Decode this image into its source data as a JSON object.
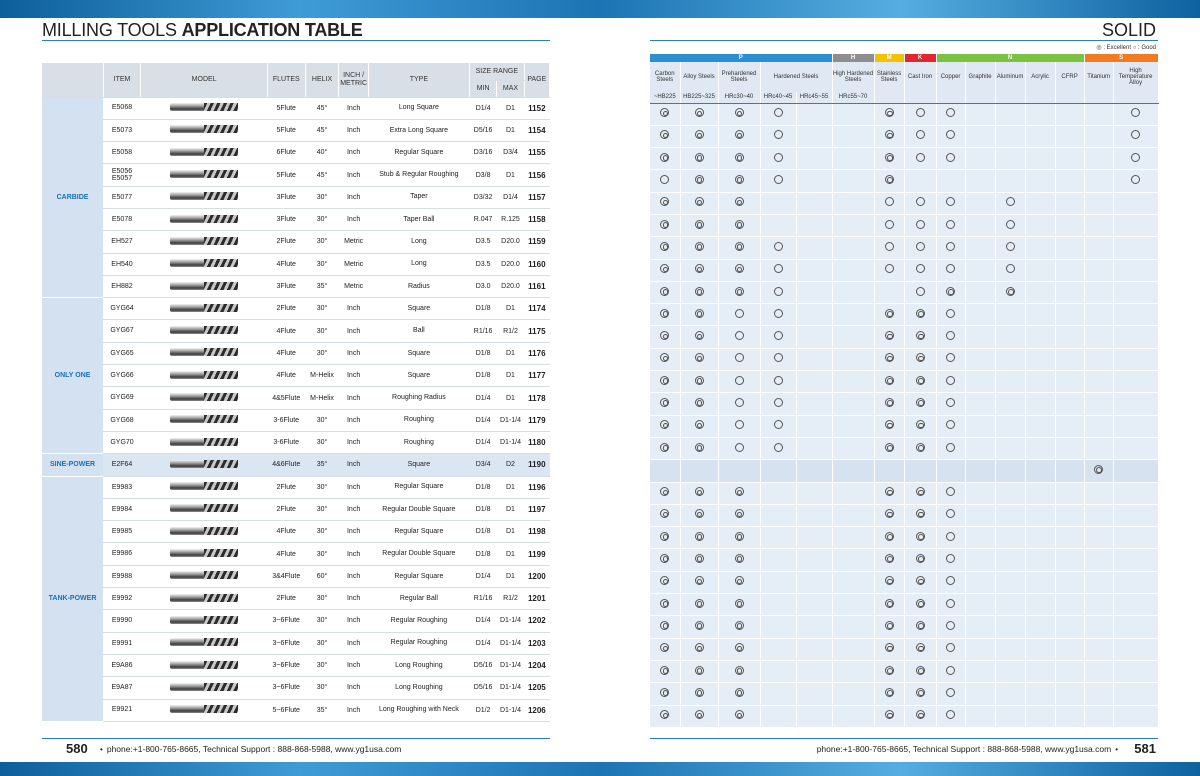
{
  "header": {
    "title_light": "MILLING TOOLS",
    "title_bold": "APPLICATION TABLE",
    "solid": "SOLID",
    "legend_excellent": "◎ : Excellent",
    "legend_good": "○ : Good"
  },
  "columns": {
    "item": "ITEM",
    "model": "MODEL",
    "flutes": "FLUTES",
    "helix": "HELIX",
    "inch_metric": "INCH / METRIC",
    "type": "TYPE",
    "size_range": "SIZE RANGE",
    "min": "MIN",
    "max": "MAX",
    "page": "PAGE"
  },
  "material_groups": [
    {
      "code": "P",
      "color": "#2b8fd4"
    },
    {
      "code": "H",
      "color": "#8e8e8e"
    },
    {
      "code": "M",
      "color": "#f2c200"
    },
    {
      "code": "K",
      "color": "#e2262f"
    },
    {
      "code": "N",
      "color": "#7cc242"
    },
    {
      "code": "S",
      "color": "#f07c22"
    }
  ],
  "materials": [
    {
      "name": "Carbon Steels",
      "hard": "~HB225"
    },
    {
      "name": "Alloy Steels",
      "hard": "HB225~325"
    },
    {
      "name": "Prehardened Steels",
      "hard": "HRc30~40"
    },
    {
      "name": "Hardened Steels",
      "hard": "HRc40~45"
    },
    {
      "name": "",
      "hard": "HRc45~55"
    },
    {
      "name": "High Hardened Steels",
      "hard": "HRc55~70"
    },
    {
      "name": "Stainless Steels",
      "hard": ""
    },
    {
      "name": "Cast Iron",
      "hard": ""
    },
    {
      "name": "Copper",
      "hard": ""
    },
    {
      "name": "Graphite",
      "hard": ""
    },
    {
      "name": "Aluminum",
      "hard": ""
    },
    {
      "name": "Acrylic",
      "hard": ""
    },
    {
      "name": "CFRP",
      "hard": ""
    },
    {
      "name": "Titanium",
      "hard": ""
    },
    {
      "name": "High Temperature Alloy",
      "hard": ""
    }
  ],
  "groups": [
    {
      "name": "CARBIDE",
      "rows": [
        {
          "item": "E5068",
          "flutes": "5Flute",
          "helix": "45°",
          "unit": "Inch",
          "type": "Long Square",
          "min": "D1/4",
          "max": "D1",
          "page": "1152",
          "marks": "EEEG  EGG     GG"
        },
        {
          "item": "E5073",
          "flutes": "5Flute",
          "helix": "45°",
          "unit": "Inch",
          "type": "Extra Long Square",
          "min": "D5/16",
          "max": "D1",
          "page": "1154",
          "marks": "EEEG  EGG     GG"
        },
        {
          "item": "E5058",
          "flutes": "6Flute",
          "helix": "40°",
          "unit": "Inch",
          "type": "Regular Square",
          "min": "D3/16",
          "max": "D3/4",
          "page": "1155",
          "marks": "EEEG  EGG     GG"
        },
        {
          "item": "E5056 E5057",
          "flutes": "5Flute",
          "helix": "45°",
          "unit": "Inch",
          "type": "Stub & Regular Roughing",
          "min": "D3/8",
          "max": "D1",
          "page": "1156",
          "marks": "GEEG  E       G "
        },
        {
          "item": "E5077",
          "flutes": "3Flute",
          "helix": "30°",
          "unit": "Inch",
          "type": "Taper",
          "min": "D3/32",
          "max": "D1/4",
          "page": "1157",
          "marks": "EEE   GGG G     "
        },
        {
          "item": "E5078",
          "flutes": "3Flute",
          "helix": "30°",
          "unit": "Inch",
          "type": "Taper Ball",
          "min": "R.047",
          "max": "R.125",
          "page": "1158",
          "marks": "EEE   GGG G     "
        },
        {
          "item": "EH527",
          "flutes": "2Flute",
          "helix": "30°",
          "unit": "Metric",
          "type": "Long",
          "min": "D3.5",
          "max": "D20.0",
          "page": "1159",
          "marks": "EEEG  GGG G     "
        },
        {
          "item": "EH540",
          "flutes": "4Flute",
          "helix": "30°",
          "unit": "Metric",
          "type": "Long",
          "min": "D3.5",
          "max": "D20.0",
          "page": "1160",
          "marks": "EEEG  GGG G     "
        },
        {
          "item": "EH882",
          "flutes": "3Flute",
          "helix": "35°",
          "unit": "Metric",
          "type": "Radius",
          "min": "D3.0",
          "max": "D20.0",
          "page": "1161",
          "marks": "EEEG   GE E     "
        }
      ]
    },
    {
      "name": "ONLY ONE",
      "rows": [
        {
          "item": "GYG64",
          "flutes": "2Flute",
          "helix": "30°",
          "unit": "Inch",
          "type": "Square",
          "min": "D1/8",
          "max": "D1",
          "page": "1174",
          "marks": "EEGG  EEG       "
        },
        {
          "item": "GYG67",
          "flutes": "4Flute",
          "helix": "30°",
          "unit": "Inch",
          "type": "Ball",
          "min": "R1/16",
          "max": "R1/2",
          "page": "1175",
          "marks": "EEGG  EEG       "
        },
        {
          "item": "GYG65",
          "flutes": "4Flute",
          "helix": "30°",
          "unit": "Inch",
          "type": "Square",
          "min": "D1/8",
          "max": "D1",
          "page": "1176",
          "marks": "EEGG  EEG       "
        },
        {
          "item": "GYG66",
          "flutes": "4Flute",
          "helix": "M-Helix",
          "unit": "Inch",
          "type": "Square",
          "min": "D1/8",
          "max": "D1",
          "page": "1177",
          "marks": "EEGG  EEG       "
        },
        {
          "item": "GYG69",
          "flutes": "4&5Flute",
          "helix": "M-Helix",
          "unit": "Inch",
          "type": "Roughing Radius",
          "min": "D1/4",
          "max": "D1",
          "page": "1178",
          "marks": "EEGG  EEG       "
        },
        {
          "item": "GYG68",
          "flutes": "3-6Flute",
          "helix": "30°",
          "unit": "Inch",
          "type": "Roughing",
          "min": "D1/4",
          "max": "D1-1/4",
          "page": "1179",
          "marks": "EEGG  EEG       "
        },
        {
          "item": "GYG70",
          "flutes": "3-6Flute",
          "helix": "30°",
          "unit": "Inch",
          "type": "Roughing",
          "min": "D1/4",
          "max": "D1-1/4",
          "page": "1180",
          "marks": "EEGG  EEG       "
        }
      ]
    },
    {
      "name": "SINE-POWER",
      "sine": true,
      "rows": [
        {
          "item": "E2F64",
          "flutes": "4&6Flute",
          "helix": "35°",
          "unit": "Inch",
          "type": "Square",
          "min": "D3/4",
          "max": "D2",
          "page": "1190",
          "marks": "             E  "
        }
      ]
    },
    {
      "name": "TANK-POWER",
      "rows": [
        {
          "item": "E9983",
          "flutes": "2Flute",
          "helix": "30°",
          "unit": "Inch",
          "type": "Regular Square",
          "min": "D1/8",
          "max": "D1",
          "page": "1196",
          "marks": "EEE   EEG       "
        },
        {
          "item": "E9984",
          "flutes": "2Flute",
          "helix": "30°",
          "unit": "Inch",
          "type": "Regular Double Square",
          "min": "D1/8",
          "max": "D1",
          "page": "1197",
          "marks": "EEE   EEG       "
        },
        {
          "item": "E9985",
          "flutes": "4Flute",
          "helix": "30°",
          "unit": "Inch",
          "type": "Regular Square",
          "min": "D1/8",
          "max": "D1",
          "page": "1198",
          "marks": "EEE   EEG       "
        },
        {
          "item": "E9986",
          "flutes": "4Flute",
          "helix": "30°",
          "unit": "Inch",
          "type": "Regular Double Square",
          "min": "D1/8",
          "max": "D1",
          "page": "1199",
          "marks": "EEE   EEG       "
        },
        {
          "item": "E9988",
          "flutes": "3&4Flute",
          "helix": "60°",
          "unit": "Inch",
          "type": "Regular Square",
          "min": "D1/4",
          "max": "D1",
          "page": "1200",
          "marks": "EEE   EEG       "
        },
        {
          "item": "E9992",
          "flutes": "2Flute",
          "helix": "30°",
          "unit": "Inch",
          "type": "Regular Ball",
          "min": "R1/16",
          "max": "R1/2",
          "page": "1201",
          "marks": "EEE   EEG       "
        },
        {
          "item": "E9990",
          "flutes": "3~6Flute",
          "helix": "30°",
          "unit": "Inch",
          "type": "Regular Roughing",
          "min": "D1/4",
          "max": "D1-1/4",
          "page": "1202",
          "marks": "EEE   EEG       "
        },
        {
          "item": "E9991",
          "flutes": "3~6Flute",
          "helix": "30°",
          "unit": "Inch",
          "type": "Regular Roughing",
          "min": "D1/4",
          "max": "D1-1/4",
          "page": "1203",
          "marks": "EEE   EEG       "
        },
        {
          "item": "E9A86",
          "flutes": "3~6Flute",
          "helix": "30°",
          "unit": "Inch",
          "type": "Long Roughing",
          "min": "D5/16",
          "max": "D1-1/4",
          "page": "1204",
          "marks": "EEE   EEG       "
        },
        {
          "item": "E9A87",
          "flutes": "3~6Flute",
          "helix": "30°",
          "unit": "Inch",
          "type": "Long Roughing",
          "min": "D5/16",
          "max": "D1-1/4",
          "page": "1205",
          "marks": "EEE   EEG       "
        },
        {
          "item": "E9921",
          "flutes": "5~6Flute",
          "helix": "35°",
          "unit": "Inch",
          "type": "Long Roughing with Neck",
          "min": "D1/2",
          "max": "D1-1/4",
          "page": "1206",
          "marks": "EEE   EEG       "
        }
      ]
    }
  ],
  "footer": {
    "left_page": "580",
    "right_page": "581",
    "left_contact": "phone:+1-800-765-8665,  Technical Support : 888-868-5988,  www.yg1usa.com",
    "right_contact": "phone:+1-800-765-8665,  Technical Support : 888-868-5988,  www.yg1usa.com"
  }
}
